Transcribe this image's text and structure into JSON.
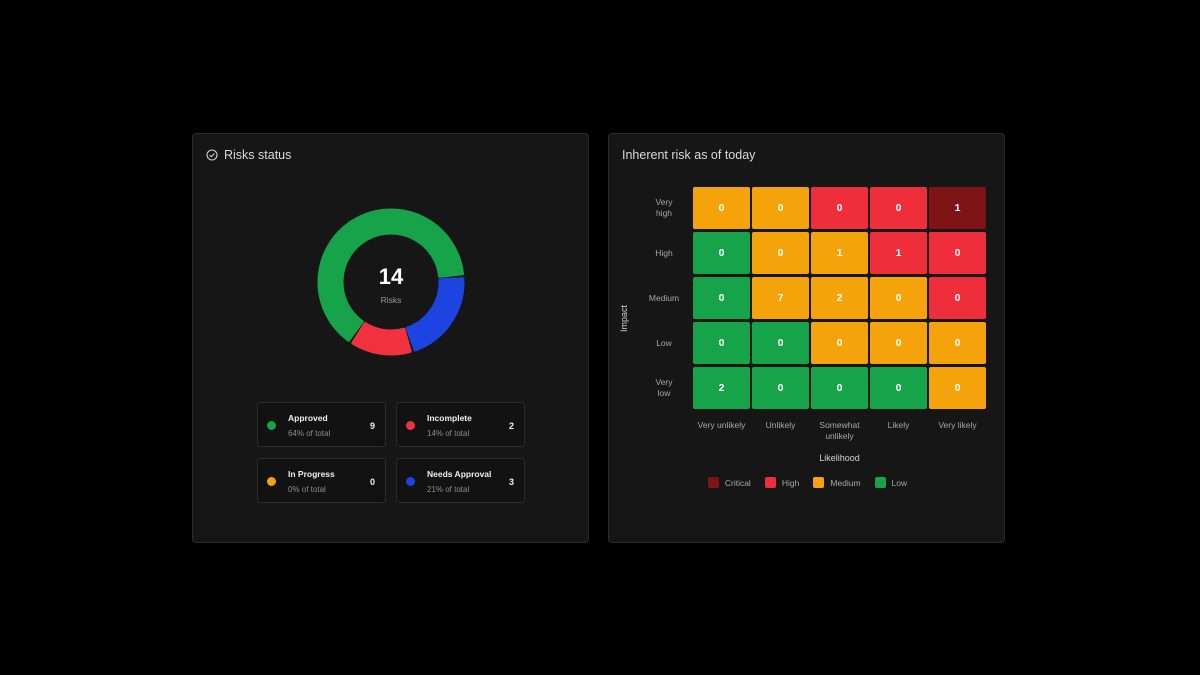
{
  "status_card": {
    "title": "Risks status",
    "icon": "check-circle-icon",
    "total": "14",
    "total_label": "Risks",
    "items": [
      {
        "name": "Approved",
        "sub": "64% of total",
        "count": "9",
        "color": "#16a34a"
      },
      {
        "name": "Incomplete",
        "sub": "14% of total",
        "count": "2",
        "color": "#f0313e"
      },
      {
        "name": "In Progress",
        "sub": "0% of total",
        "count": "0",
        "color": "#f5a30b"
      },
      {
        "name": "Needs Approval",
        "sub": "21% of total",
        "count": "3",
        "color": "#1d44e0"
      }
    ]
  },
  "chart_data": [
    {
      "type": "pie",
      "variant": "donut",
      "categories": [
        "Approved",
        "Incomplete",
        "In Progress",
        "Needs Approval"
      ],
      "values": [
        9,
        2,
        0,
        3
      ],
      "colors": [
        "#16a34a",
        "#f0313e",
        "#f5a30b",
        "#1d44e0"
      ]
    },
    {
      "type": "heatmap",
      "title": "Inherent risk as of today",
      "xlabel": "Likelihood",
      "ylabel": "Impact",
      "x_categories": [
        "Very unlikely",
        "Unlikely",
        "Somewhat unlikely",
        "Likely",
        "Very likely"
      ],
      "y_categories": [
        "Very high",
        "High",
        "Medium",
        "Low",
        "Very low"
      ],
      "values": [
        [
          0,
          0,
          0,
          0,
          1
        ],
        [
          0,
          0,
          1,
          1,
          0
        ],
        [
          0,
          7,
          2,
          0,
          0
        ],
        [
          0,
          0,
          0,
          0,
          0
        ],
        [
          2,
          0,
          0,
          0,
          0
        ]
      ],
      "levels": [
        [
          "Medium",
          "Medium",
          "High",
          "High",
          "Critical"
        ],
        [
          "Low",
          "Medium",
          "Medium",
          "High",
          "High"
        ],
        [
          "Low",
          "Medium",
          "Medium",
          "Medium",
          "High"
        ],
        [
          "Low",
          "Low",
          "Medium",
          "Medium",
          "Medium"
        ],
        [
          "Low",
          "Low",
          "Low",
          "Low",
          "Medium"
        ]
      ],
      "legend": [
        {
          "label": "Critical",
          "color": "#7f1416"
        },
        {
          "label": "High",
          "color": "#ee2f3b"
        },
        {
          "label": "Medium",
          "color": "#f5a30b"
        },
        {
          "label": "Low",
          "color": "#16a34a"
        }
      ],
      "legend_position": "bottom"
    }
  ],
  "inherent_card": {
    "title": "Inherent risk as of today",
    "row_labels": [
      [
        "Very",
        "high"
      ],
      [
        "High"
      ],
      [
        "Medium"
      ],
      [
        "Low"
      ],
      [
        "Very",
        "low"
      ]
    ],
    "col_labels": [
      [
        "Very unlikely"
      ],
      [
        "Unlikely"
      ],
      [
        "Somewhat",
        "unlikely"
      ],
      [
        "Likely"
      ],
      [
        "Very likely"
      ]
    ],
    "xlabel": "Likelihood",
    "ylabel": "Impact"
  }
}
